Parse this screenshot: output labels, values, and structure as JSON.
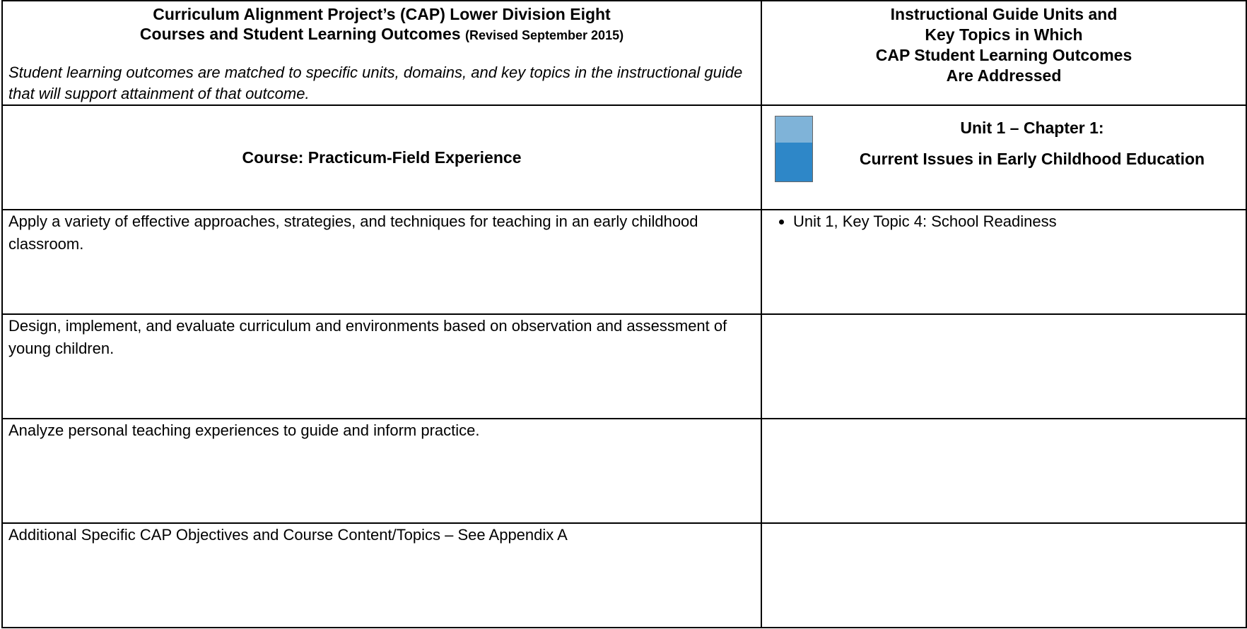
{
  "header": {
    "left_title_line1": "Curriculum Alignment Project’s (CAP) Lower Division Eight",
    "left_title_line2": "Courses and Student Learning Outcomes",
    "left_title_note": "(Revised September 2015)",
    "left_subtitle": "Student learning outcomes are matched to specific units, domains, and key topics in the instructional guide that will support attainment of that outcome.",
    "right_title": [
      "Instructional Guide Units and",
      "Key Topics in Which",
      "CAP Student Learning Outcomes",
      "Are Addressed"
    ]
  },
  "course": {
    "label": "Course:  Practicum-Field Experience",
    "unit_line1": "Unit 1 – Chapter 1:",
    "unit_line2": "Current Issues in Early Childhood Education"
  },
  "table": {
    "rows": [
      [
        "Apply a variety of effective approaches, strategies, and techniques for teaching in an early childhood classroom.",
        "Unit 1, Key Topic 4: School Readiness"
      ],
      [
        "Design, implement, and evaluate curriculum and environments based on observation and assessment of young children.",
        null
      ],
      [
        "Analyze personal teaching experiences to guide and inform practice.",
        null
      ],
      [
        "Additional Specific CAP Objectives and Course Content/Topics – See Appendix A",
        null
      ]
    ]
  }
}
